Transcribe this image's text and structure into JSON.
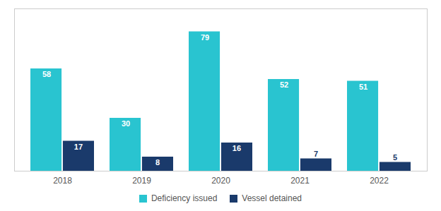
{
  "chart_data": {
    "type": "bar",
    "categories": [
      "2018",
      "2019",
      "2020",
      "2021",
      "2022"
    ],
    "series": [
      {
        "name": "Deficiency issued",
        "color": "#29C4D0",
        "values": [
          58,
          30,
          79,
          52,
          51
        ]
      },
      {
        "name": "Vessel detained",
        "color": "#1A3A6B",
        "values": [
          17,
          8,
          16,
          7,
          5
        ]
      }
    ],
    "ylim": [
      0,
      92
    ],
    "grid": false,
    "data_labels": true,
    "tick_labels": "x",
    "legend": "bottom"
  }
}
